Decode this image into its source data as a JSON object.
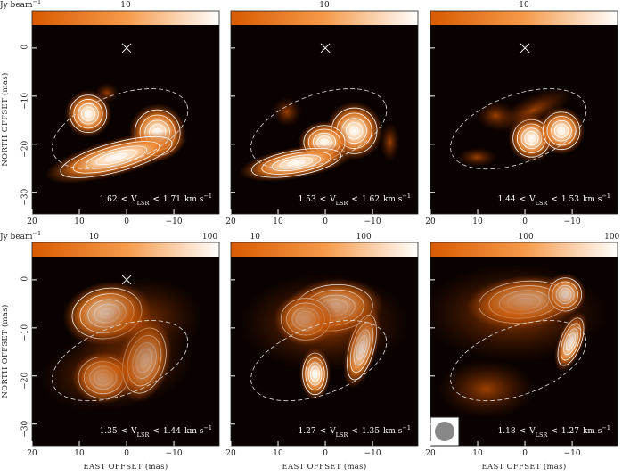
{
  "axes": {
    "x_label": "EAST OFFSET (mas)",
    "y_label": "NORTH OFFSET (mas)",
    "xlim": [
      20,
      -19.6
    ],
    "ylim": [
      -34.5,
      4.8
    ],
    "x_ticks": [
      20,
      10,
      0,
      {
        "value": -10,
        "label": "−10"
      }
    ],
    "y_ticks": [
      0,
      {
        "value": -10,
        "label": "−10"
      },
      {
        "value": -20,
        "label": "−20"
      },
      {
        "value": -30,
        "label": "−30"
      }
    ],
    "colorbar_unit": "Jy beam",
    "colorbar_unit_exp": "−1"
  },
  "velocity_label": {
    "var": "V",
    "sub": "LSR",
    "sep": "<",
    "unit": "km s",
    "unit_exp": "−1"
  },
  "panels": [
    {
      "v_low": "1.62",
      "v_high": "1.71",
      "colorbar_ticks": [
        "10"
      ]
    },
    {
      "v_low": "1.53",
      "v_high": "1.62",
      "colorbar_ticks": [
        "10"
      ]
    },
    {
      "v_low": "1.44",
      "v_high": "1.53",
      "colorbar_ticks": [
        "10"
      ]
    },
    {
      "v_low": "1.35",
      "v_high": "1.44",
      "colorbar_ticks": [
        "10",
        "100"
      ]
    },
    {
      "v_low": "1.27",
      "v_high": "1.35",
      "colorbar_ticks": [
        "10",
        "100"
      ]
    },
    {
      "v_low": "1.18",
      "v_high": "1.27",
      "colorbar_ticks": [
        "100",
        "100"
      ]
    }
  ]
}
